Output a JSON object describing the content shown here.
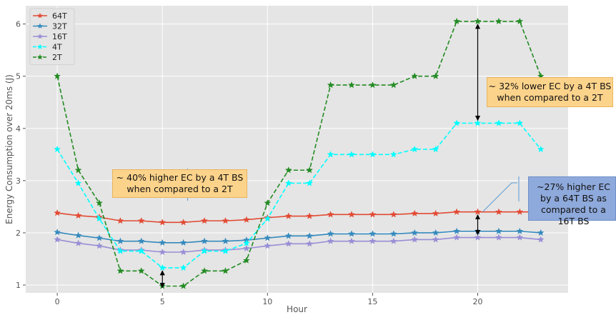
{
  "chart_data": {
    "type": "line",
    "title": "",
    "xlabel": "Hour",
    "ylabel": "Energy Consumption over 20ms (J)",
    "xlim": [
      -1.5,
      24.3
    ],
    "ylim": [
      0.85,
      6.35
    ],
    "x_ticks": [
      0,
      5,
      10,
      15,
      20
    ],
    "y_ticks": [
      1,
      2,
      3,
      4,
      5,
      6
    ],
    "grid": true,
    "legend_position": "top-left",
    "x": [
      0,
      1,
      2,
      3,
      4,
      5,
      6,
      7,
      8,
      9,
      10,
      11,
      12,
      13,
      14,
      15,
      16,
      17,
      18,
      19,
      20,
      21,
      22,
      23
    ],
    "series": [
      {
        "name": "64T",
        "color": "#e24a33",
        "dash": "solid",
        "values": [
          2.38,
          2.33,
          2.3,
          2.23,
          2.23,
          2.2,
          2.2,
          2.23,
          2.23,
          2.25,
          2.29,
          2.32,
          2.32,
          2.35,
          2.35,
          2.35,
          2.35,
          2.37,
          2.37,
          2.4,
          2.4,
          2.4,
          2.4,
          2.4
        ]
      },
      {
        "name": "32T",
        "color": "#348abd",
        "dash": "solid",
        "values": [
          2.01,
          1.95,
          1.9,
          1.84,
          1.84,
          1.81,
          1.81,
          1.84,
          1.84,
          1.86,
          1.9,
          1.94,
          1.94,
          1.98,
          1.98,
          1.98,
          1.98,
          2.0,
          2.0,
          2.03,
          2.03,
          2.03,
          2.03,
          2.0
        ]
      },
      {
        "name": "16T",
        "color": "#988ed5",
        "dash": "solid",
        "values": [
          1.87,
          1.8,
          1.75,
          1.67,
          1.67,
          1.63,
          1.63,
          1.67,
          1.67,
          1.7,
          1.75,
          1.79,
          1.79,
          1.84,
          1.84,
          1.84,
          1.84,
          1.87,
          1.87,
          1.91,
          1.91,
          1.91,
          1.91,
          1.87
        ]
      },
      {
        "name": "4T",
        "color": "#00ffff",
        "dash": "dashed",
        "values": [
          3.6,
          2.95,
          2.27,
          1.65,
          1.65,
          1.33,
          1.33,
          1.65,
          1.65,
          1.8,
          2.27,
          2.95,
          2.95,
          3.5,
          3.5,
          3.5,
          3.5,
          3.6,
          3.6,
          4.1,
          4.1,
          4.1,
          4.1,
          3.6
        ]
      },
      {
        "name": "2T",
        "color": "#228b22",
        "dash": "dashed",
        "values": [
          5.0,
          3.2,
          2.57,
          1.27,
          1.27,
          0.98,
          0.98,
          1.27,
          1.27,
          1.47,
          2.57,
          3.2,
          3.2,
          4.83,
          4.83,
          4.83,
          4.83,
          5.0,
          5.0,
          6.05,
          6.05,
          6.05,
          6.05,
          5.0
        ]
      }
    ],
    "annotations": [
      {
        "text": "~ 32% lower EC by a 4T BS when compared to a 2T",
        "color": "#fcd38b"
      },
      {
        "text": "~ 40% higher EC by a 4T BS when compared to a 2T",
        "color": "#fcd38b"
      },
      {
        "text": "~27% higher EC by a 64T BS as compared to a 16T BS",
        "color": "#8ea9db"
      }
    ]
  }
}
